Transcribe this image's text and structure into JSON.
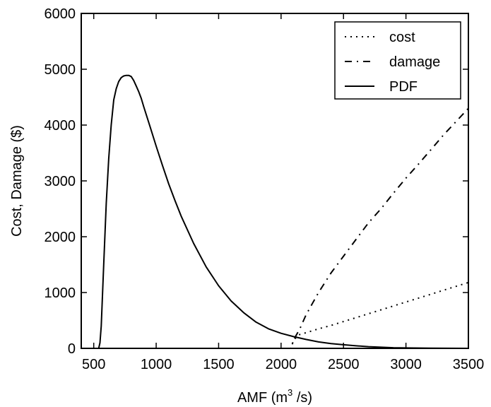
{
  "chart_data": {
    "type": "line",
    "title": "",
    "xlabel_main": "AMF (m",
    "xlabel_sup": "3",
    "xlabel_tail": " /s)",
    "ylabel": "Cost, Damage ($)",
    "xlim": [
      400,
      3500
    ],
    "ylim": [
      0,
      6000
    ],
    "x_ticks": [
      500,
      1000,
      1500,
      2000,
      2500,
      3000,
      3500
    ],
    "y_ticks": [
      0,
      1000,
      2000,
      3000,
      4000,
      5000,
      6000
    ],
    "legend_position": "top-right",
    "grid": false,
    "series": [
      {
        "name": "cost",
        "style": "dotted",
        "color": "#000000",
        "x": [
          400,
          2080,
          2100,
          2150,
          2200,
          2300,
          2400,
          2500,
          2600,
          2700,
          2800,
          2900,
          3000,
          3100,
          3200,
          3300,
          3400,
          3500
        ],
        "y": [
          0,
          0,
          150,
          250,
          280,
          350,
          410,
          480,
          550,
          620,
          690,
          760,
          830,
          900,
          970,
          1040,
          1110,
          1180
        ]
      },
      {
        "name": "damage",
        "style": "dashdot",
        "color": "#000000",
        "x": [
          400,
          2080,
          2100,
          2150,
          2200,
          2250,
          2300,
          2400,
          2500,
          2600,
          2700,
          2800,
          2900,
          3000,
          3100,
          3200,
          3300,
          3400,
          3500
        ],
        "y": [
          0,
          0,
          150,
          350,
          600,
          800,
          1000,
          1350,
          1650,
          1950,
          2250,
          2500,
          2780,
          3050,
          3300,
          3560,
          3820,
          4060,
          4300
        ]
      },
      {
        "name": "PDF",
        "style": "solid",
        "color": "#000000",
        "x": [
          400,
          540,
          550,
          560,
          580,
          600,
          620,
          640,
          660,
          680,
          700,
          720,
          740,
          760,
          780,
          800,
          820,
          840,
          860,
          880,
          900,
          950,
          1000,
          1050,
          1100,
          1150,
          1200,
          1300,
          1400,
          1500,
          1600,
          1700,
          1800,
          1900,
          2000,
          2100,
          2200,
          2300,
          2400,
          2500,
          2600,
          2700,
          2800,
          2900,
          3000,
          3200,
          3500
        ],
        "y": [
          0,
          0,
          100,
          400,
          1500,
          2600,
          3400,
          4000,
          4450,
          4650,
          4780,
          4850,
          4880,
          4890,
          4890,
          4870,
          4800,
          4700,
          4600,
          4480,
          4330,
          3980,
          3620,
          3280,
          2950,
          2650,
          2370,
          1880,
          1460,
          1120,
          850,
          640,
          470,
          350,
          270,
          210,
          160,
          115,
          85,
          65,
          45,
          30,
          20,
          12,
          8,
          4,
          0
        ]
      }
    ]
  }
}
